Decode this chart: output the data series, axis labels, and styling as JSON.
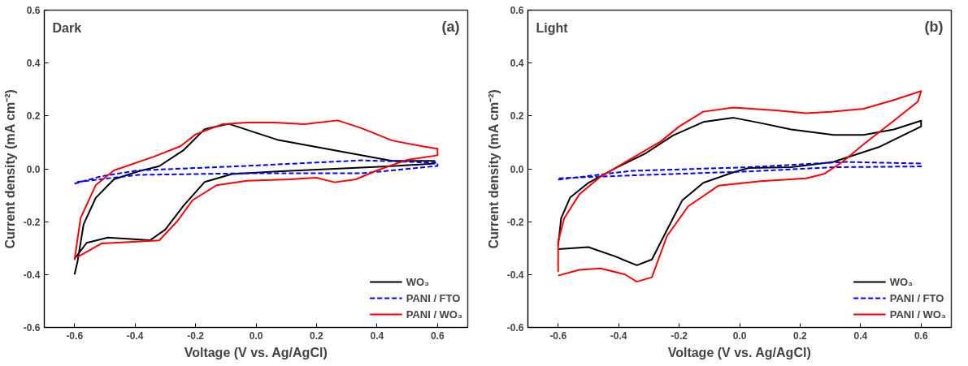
{
  "chart_data": [
    {
      "type": "line",
      "xlabel": "Voltage (V vs. Ag/AgCl)",
      "ylabel": "Current density (mA cm⁻²)",
      "annotations": [
        "Dark",
        "(a)"
      ],
      "xlim": [
        -0.7,
        0.7
      ],
      "ylim": [
        -0.6,
        0.6
      ],
      "xticks": [
        -0.6,
        -0.4,
        -0.2,
        {
          "value": 0,
          "label": "0.0"
        },
        0.2,
        0.4,
        0.6
      ],
      "yticks": [
        -0.6,
        -0.4,
        -0.2,
        {
          "value": 0,
          "label": "0.0"
        },
        0.2,
        0.4,
        0.6
      ],
      "grid": false,
      "legend": "bottom right",
      "series": [
        {
          "name": "WO₃",
          "color": "#000000",
          "line_style": "solid",
          "x": [
            -0.6,
            -0.56,
            -0.49,
            -0.35,
            -0.3,
            -0.24,
            -0.17,
            -0.08,
            0.07,
            0.26,
            0.45,
            0.59,
            0.59,
            0.45,
            0.26,
            0.07,
            -0.09,
            -0.17,
            -0.24,
            -0.32,
            -0.39,
            -0.47,
            -0.53,
            -0.57,
            -0.59,
            -0.6
          ],
          "values": [
            -0.34,
            -0.28,
            -0.26,
            -0.27,
            -0.23,
            -0.14,
            -0.05,
            -0.02,
            -0.01,
            0.0,
            0.01,
            0.02,
            0.03,
            0.03,
            0.07,
            0.11,
            0.17,
            0.15,
            0.07,
            0.01,
            -0.01,
            -0.04,
            -0.11,
            -0.21,
            -0.35,
            -0.4
          ]
        },
        {
          "name": "PANI / FTO",
          "color": "#0000ff",
          "line_style": "dashed",
          "x": [
            -0.6,
            -0.51,
            -0.39,
            -0.03,
            0.35,
            0.6,
            0.6,
            0.35,
            -0.03,
            -0.39,
            -0.6
          ],
          "values": [
            -0.056,
            -0.028,
            -0.006,
            0.011,
            0.032,
            0.023,
            0.011,
            -0.017,
            -0.017,
            -0.023,
            -0.051
          ]
        },
        {
          "name": "PANI / WO₃",
          "color": "#ff0000",
          "line_style": "solid",
          "x": [
            -0.6,
            -0.58,
            -0.53,
            -0.47,
            -0.34,
            -0.25,
            -0.2,
            -0.11,
            -0.03,
            0.06,
            0.16,
            0.27,
            0.35,
            0.45,
            0.55,
            0.6,
            0.6,
            0.5,
            0.4,
            0.33,
            0.26,
            0.2,
            0.11,
            -0.03,
            -0.13,
            -0.21,
            -0.26,
            -0.32,
            -0.42,
            -0.51,
            -0.59
          ],
          "values": [
            -0.345,
            -0.186,
            -0.062,
            -0.006,
            0.045,
            0.085,
            0.13,
            0.169,
            0.175,
            0.175,
            0.169,
            0.183,
            0.153,
            0.107,
            0.085,
            0.076,
            0.051,
            0.034,
            -0.006,
            -0.04,
            -0.051,
            -0.034,
            -0.04,
            -0.045,
            -0.062,
            -0.119,
            -0.198,
            -0.271,
            -0.277,
            -0.282,
            -0.333
          ]
        }
      ]
    },
    {
      "type": "line",
      "xlabel": "Voltage (V vs. Ag/AgCl)",
      "ylabel": "Current density (mA cm⁻²)",
      "annotations": [
        "Light",
        "(b)"
      ],
      "xlim": [
        -0.7,
        0.7
      ],
      "ylim": [
        -0.6,
        0.6
      ],
      "xticks": [
        -0.6,
        -0.4,
        -0.2,
        {
          "value": 0,
          "label": "0.0"
        },
        0.2,
        0.4,
        0.6
      ],
      "yticks": [
        -0.6,
        -0.4,
        -0.2,
        {
          "value": 0,
          "label": "0.0"
        },
        0.2,
        0.4,
        0.6
      ],
      "grid": false,
      "legend": "bottom right",
      "series": [
        {
          "name": "WO₃",
          "color": "#000000",
          "line_style": "solid",
          "x": [
            -0.6,
            -0.5,
            -0.41,
            -0.34,
            -0.29,
            -0.24,
            -0.19,
            -0.12,
            -0.02,
            0.03,
            0.17,
            0.31,
            0.46,
            0.6,
            0.6,
            0.51,
            0.41,
            0.31,
            0.17,
            0.07,
            -0.02,
            -0.12,
            -0.22,
            -0.31,
            -0.41,
            -0.5,
            -0.56,
            -0.59,
            -0.6
          ],
          "values": [
            -0.304,
            -0.296,
            -0.332,
            -0.365,
            -0.343,
            -0.231,
            -0.12,
            -0.053,
            -0.013,
            0.003,
            0.006,
            0.026,
            0.082,
            0.16,
            0.182,
            0.149,
            0.128,
            0.128,
            0.149,
            0.173,
            0.193,
            0.177,
            0.126,
            0.059,
            0.003,
            -0.053,
            -0.108,
            -0.187,
            -0.29
          ]
        },
        {
          "name": "PANI / FTO",
          "color": "#0000ff",
          "line_style": "dashed",
          "x": [
            -0.6,
            -0.36,
            0.03,
            0.35,
            0.6,
            0.6,
            0.31,
            0.03,
            -0.36,
            -0.6
          ],
          "values": [
            -0.041,
            -0.008,
            0.006,
            0.026,
            0.02,
            0.009,
            0.006,
            -0.01,
            -0.025,
            -0.036
          ]
        },
        {
          "name": "PANI / WO₃",
          "color": "#ff0000",
          "line_style": "solid",
          "x": [
            -0.6,
            -0.53,
            -0.46,
            -0.38,
            -0.34,
            -0.29,
            -0.24,
            -0.17,
            -0.07,
            0.07,
            0.22,
            0.28,
            0.34,
            0.41,
            0.51,
            0.59,
            0.6,
            0.51,
            0.41,
            0.31,
            0.22,
            0.12,
            -0.02,
            -0.12,
            -0.2,
            -0.26,
            -0.36,
            -0.46,
            -0.53,
            -0.58,
            -0.6,
            -0.6
          ],
          "values": [
            -0.404,
            -0.382,
            -0.377,
            -0.399,
            -0.427,
            -0.41,
            -0.254,
            -0.142,
            -0.064,
            -0.047,
            -0.036,
            -0.019,
            0.026,
            0.093,
            0.182,
            0.255,
            0.294,
            0.26,
            0.227,
            0.216,
            0.21,
            0.221,
            0.232,
            0.216,
            0.16,
            0.104,
            0.037,
            -0.03,
            -0.097,
            -0.187,
            -0.276,
            -0.39
          ]
        }
      ]
    }
  ]
}
